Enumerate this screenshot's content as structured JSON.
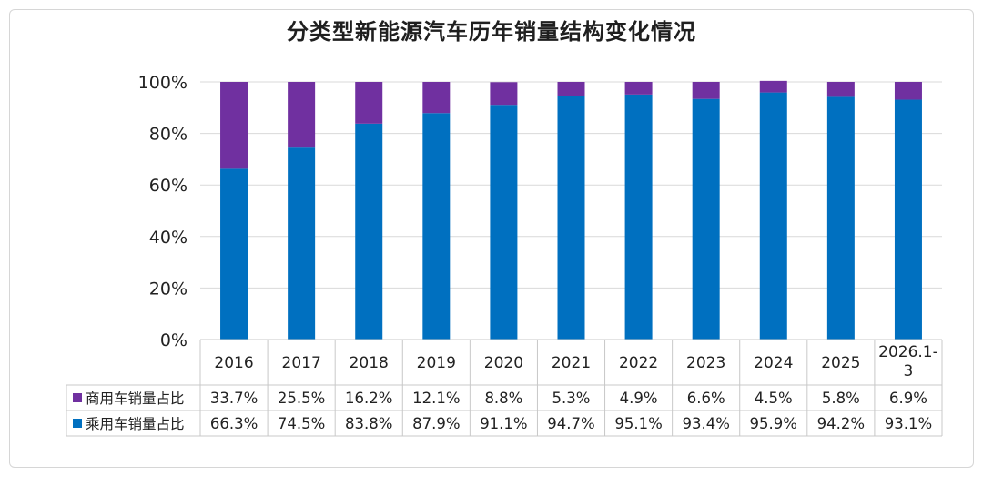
{
  "chart_data": {
    "type": "bar",
    "stacked": true,
    "percent": true,
    "title": "分类型新能源汽车历年销量结构变化情况",
    "categories": [
      "2016",
      "2017",
      "2018",
      "2019",
      "2020",
      "2021",
      "2022",
      "2023",
      "2024",
      "2025",
      "2026.1-3"
    ],
    "category_label_lines": [
      [
        "2016"
      ],
      [
        "2017"
      ],
      [
        "2018"
      ],
      [
        "2019"
      ],
      [
        "2020"
      ],
      [
        "2021"
      ],
      [
        "2022"
      ],
      [
        "2023"
      ],
      [
        "2024"
      ],
      [
        "2025"
      ],
      [
        "2026.1-",
        "3"
      ]
    ],
    "ylim": [
      0,
      100
    ],
    "yticks": [
      "0%",
      "20%",
      "40%",
      "60%",
      "80%",
      "100%"
    ],
    "grid": true,
    "series": [
      {
        "name": "商用车销量占比",
        "color": "#7030a0",
        "values": [
          33.7,
          25.5,
          16.2,
          12.1,
          8.8,
          5.3,
          4.9,
          6.6,
          4.5,
          5.8,
          6.9
        ],
        "labels": [
          "33.7%",
          "25.5%",
          "16.2%",
          "12.1%",
          "8.8%",
          "5.3%",
          "4.9%",
          "6.6%",
          "4.5%",
          "5.8%",
          "6.9%"
        ]
      },
      {
        "name": "乘用车销量占比",
        "color": "#0070c0",
        "values": [
          66.3,
          74.5,
          83.8,
          87.9,
          91.1,
          94.7,
          95.1,
          93.4,
          95.9,
          94.2,
          93.1
        ],
        "labels": [
          "66.3%",
          "74.5%",
          "83.8%",
          "87.9%",
          "91.1%",
          "94.7%",
          "95.1%",
          "93.4%",
          "95.9%",
          "94.2%",
          "93.1%"
        ]
      }
    ],
    "legend": "data-table-left"
  }
}
